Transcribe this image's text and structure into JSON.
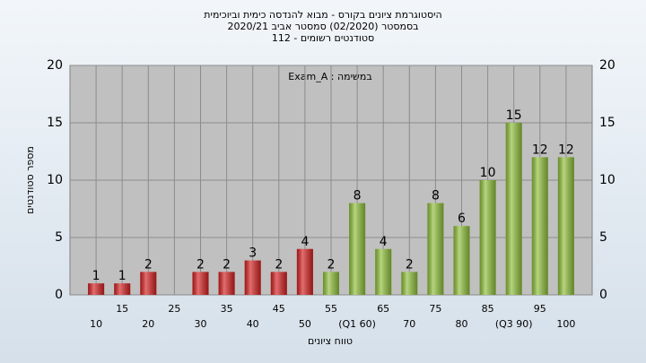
{
  "chart_data": {
    "type": "bar",
    "title": "היסטוגרמת ציונים בקורס - מבוא להנדסה כימית וביוכימית",
    "subtitle": "בסמסטר  (02/2020)  סמסטר אביב 2020/21",
    "subtitle2": "סטודנטים רשומים - 112",
    "annotation": "Exam_A : במשימה",
    "x_label": "טווח ציונים",
    "y_label": "מספר סטודנטים",
    "categories": [
      "10",
      "15",
      "20",
      "25",
      "30",
      "35",
      "40",
      "45",
      "50",
      "55",
      "(Q1 60)",
      "65",
      "70",
      "75",
      "80",
      "85",
      "(Q3 90)",
      "95",
      "100"
    ],
    "values": [
      1,
      1,
      2,
      0,
      2,
      2,
      3,
      2,
      4,
      2,
      8,
      4,
      2,
      8,
      6,
      10,
      15,
      12,
      12
    ],
    "colors": [
      "#d42020",
      "#d42020",
      "#d42020",
      "#d42020",
      "#d42020",
      "#d42020",
      "#d42020",
      "#d42020",
      "#d42020",
      "#8fbf3a",
      "#8fbf3a",
      "#8fbf3a",
      "#8fbf3a",
      "#8fbf3a",
      "#8fbf3a",
      "#8fbf3a",
      "#8fbf3a",
      "#8fbf3a",
      "#8fbf3a"
    ],
    "ylim": [
      0,
      20
    ],
    "yticks": [
      0,
      5,
      10,
      15,
      20
    ],
    "grid": true
  }
}
